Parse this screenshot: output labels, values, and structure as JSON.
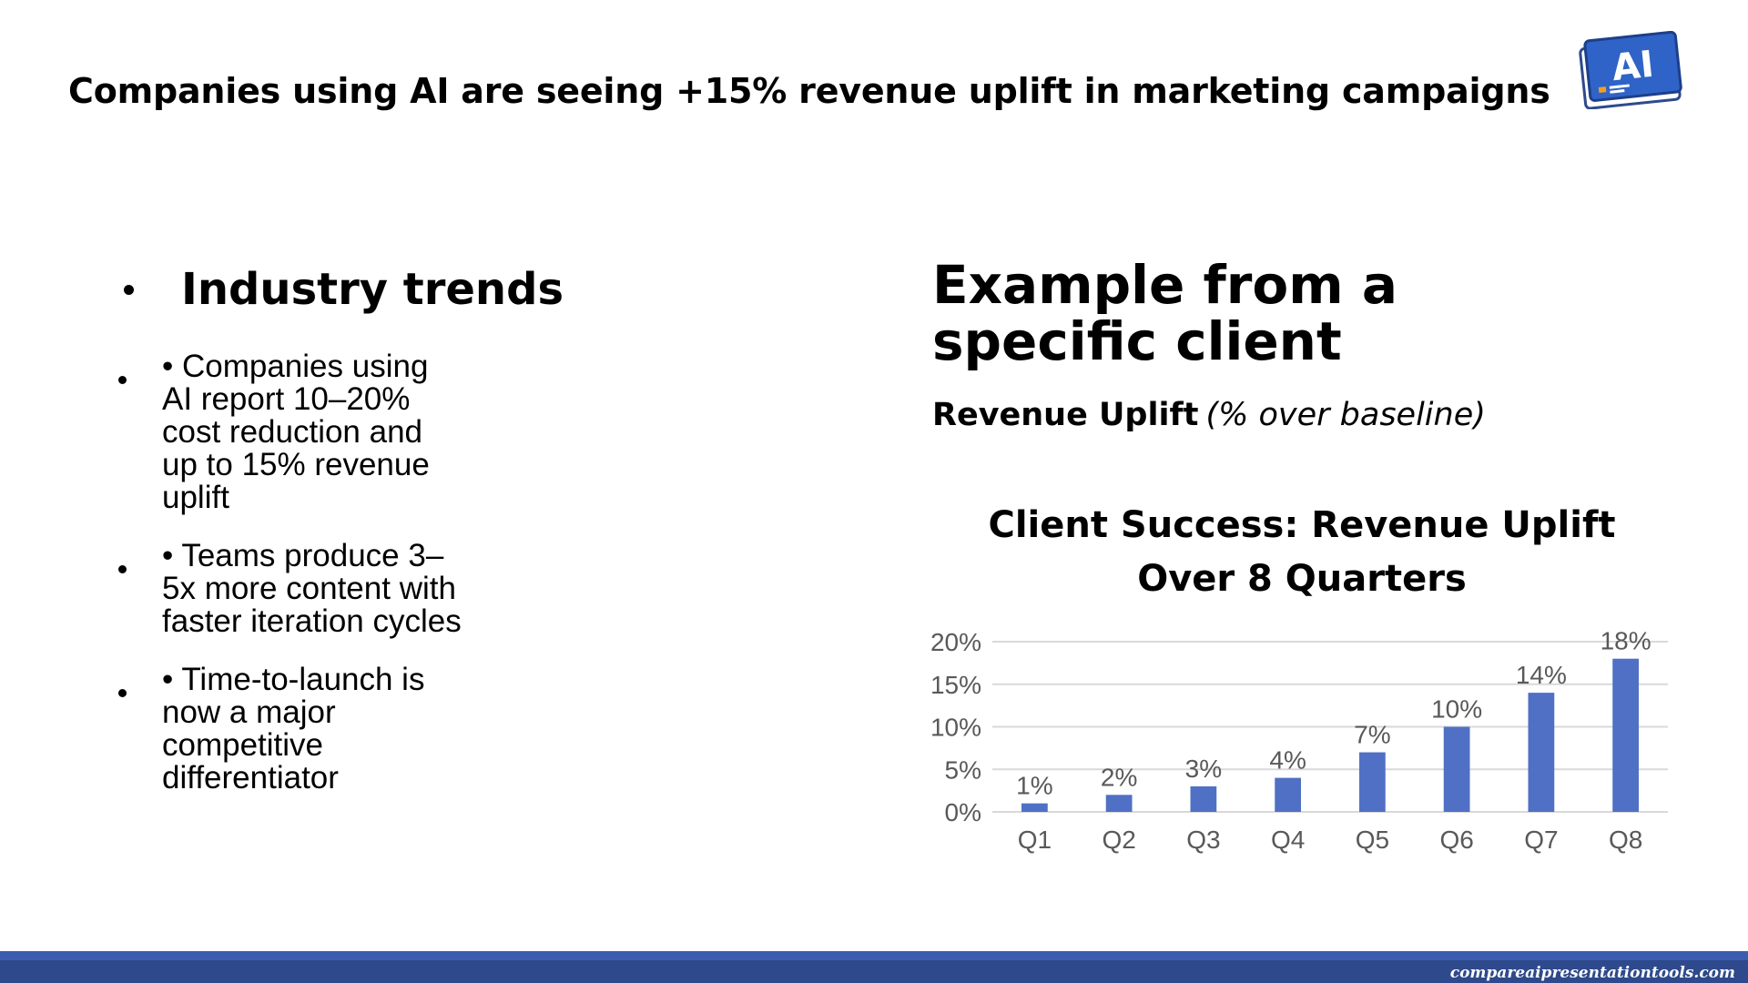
{
  "headline": "Companies using AI are seeing +15% revenue uplift in marketing campaigns",
  "logo": {
    "text": "AI",
    "icon": "ai-presentation-logo-icon"
  },
  "industry": {
    "title": "Industry trends",
    "items": [
      "• Companies using AI report 10–20% cost reduction and up to 15% revenue uplift",
      "• Teams produce 3–5x more content with faster iteration cycles",
      "• Time-to-launch is now a major competitive differentiator"
    ]
  },
  "example": {
    "title": "Example from a specific client",
    "metric_label": "Revenue Uplift",
    "metric_note": "(% over baseline)"
  },
  "chart_data": {
    "type": "bar",
    "title": "Client Success: Revenue Uplift Over 8 Quarters",
    "categories": [
      "Q1",
      "Q2",
      "Q3",
      "Q4",
      "Q5",
      "Q6",
      "Q7",
      "Q8"
    ],
    "values": [
      1,
      2,
      3,
      4,
      7,
      10,
      14,
      18
    ],
    "value_labels": [
      "1%",
      "2%",
      "3%",
      "4%",
      "7%",
      "10%",
      "14%",
      "18%"
    ],
    "ylim": [
      0,
      20
    ],
    "yticks": [
      0,
      5,
      10,
      15,
      20
    ],
    "ytick_labels": [
      "0%",
      "5%",
      "10%",
      "15%",
      "20%"
    ],
    "grid": true,
    "bar_color": "#4f70c4"
  },
  "footer": {
    "url": "compareaipresentationtools.com",
    "color": "#2e4a8c"
  }
}
